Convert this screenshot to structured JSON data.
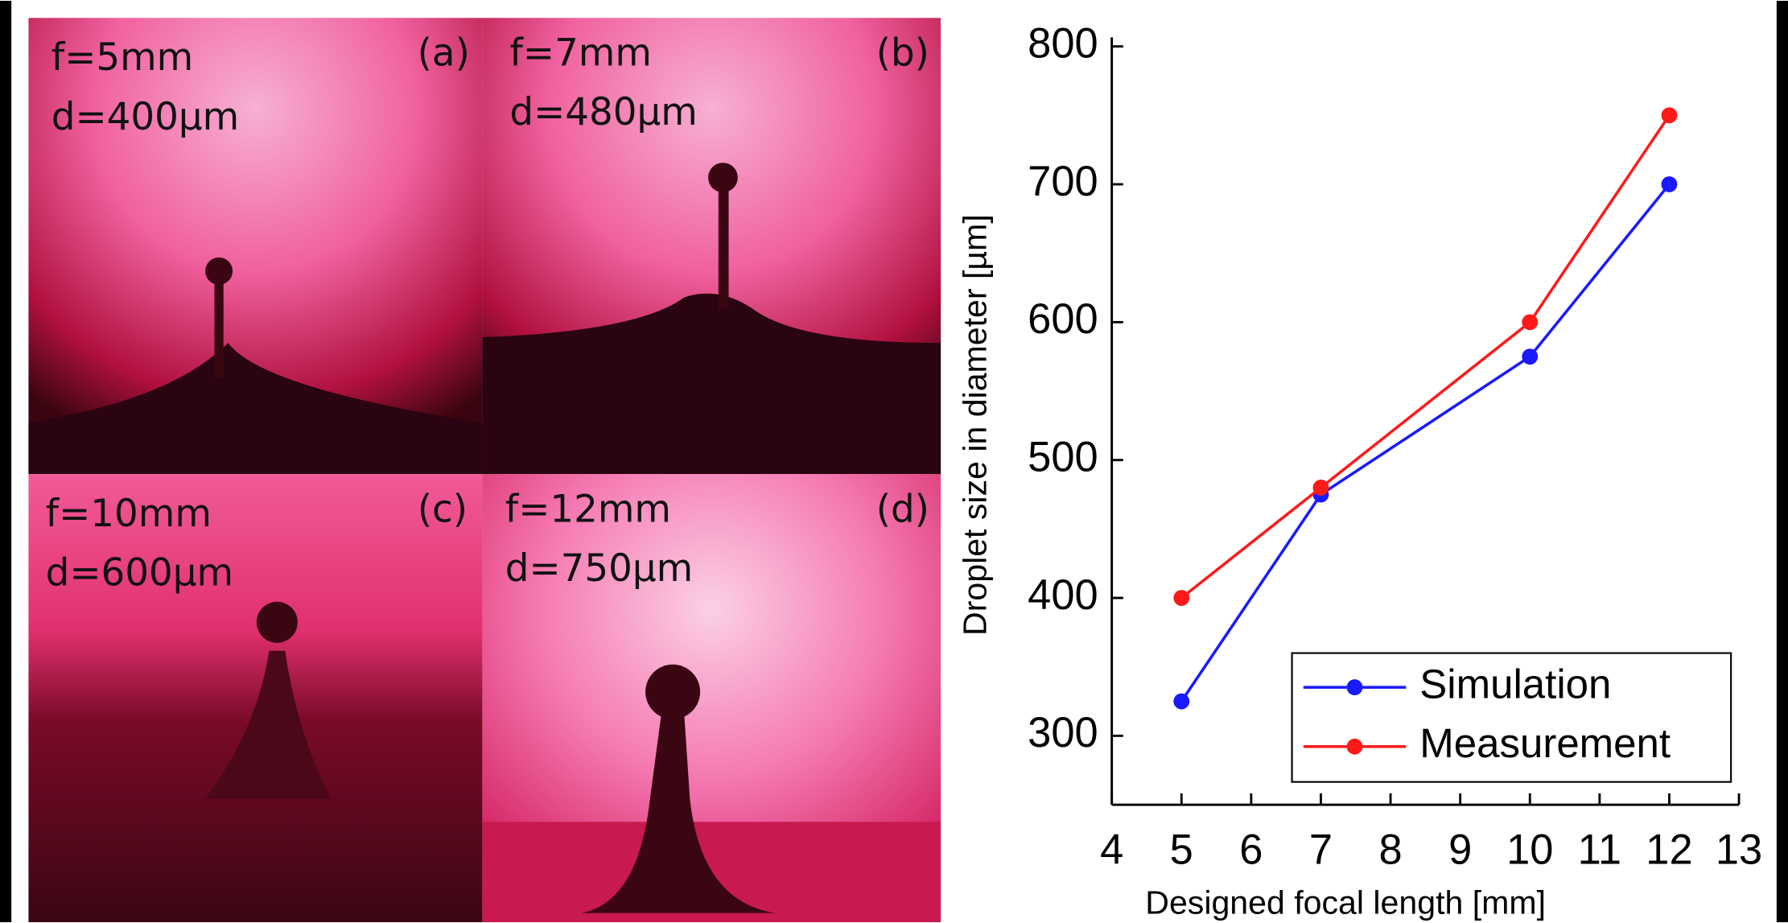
{
  "panels": [
    {
      "focal": "f=5mm",
      "diameter": "d=400µm",
      "tag": "(a)"
    },
    {
      "focal": "f=7mm",
      "diameter": "d=480µm",
      "tag": "(b)"
    },
    {
      "focal": "f=10mm",
      "diameter": "d=600µm",
      "tag": "(c)"
    },
    {
      "focal": "f=12mm",
      "diameter": "d=750µm",
      "tag": "(d)"
    }
  ],
  "chart_data": {
    "type": "line",
    "x_label": "Designed focal length [mm]",
    "y_label": "Droplet size in diameter [µm]",
    "x": [
      5,
      7,
      10,
      12
    ],
    "series": [
      {
        "name": "Simulation",
        "color": "#1a1aff",
        "values": [
          325,
          475,
          575,
          700
        ]
      },
      {
        "name": "Measurement",
        "color": "#ff1a1a",
        "values": [
          400,
          480,
          600,
          750
        ]
      }
    ],
    "xlim": [
      4,
      13
    ],
    "xticks": [
      4,
      5,
      6,
      7,
      8,
      9,
      10,
      11,
      12,
      13
    ],
    "ylim": [
      250,
      800
    ],
    "yticks": [
      300,
      400,
      500,
      600,
      700,
      800
    ],
    "legend": "lower right"
  }
}
